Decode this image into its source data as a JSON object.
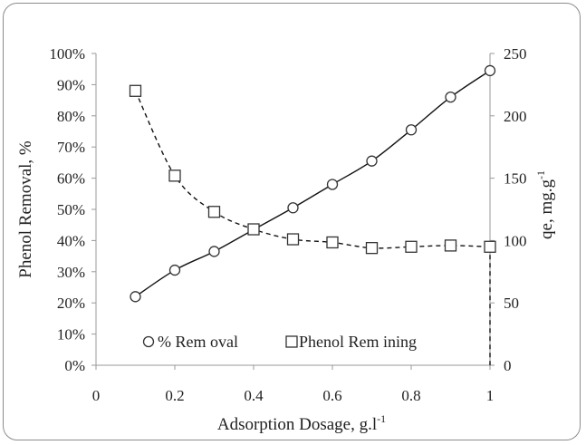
{
  "chart_data": {
    "type": "line",
    "xlabel": "Adsorption Dosage, g.l",
    "xlabel_sup": "-1",
    "ylabel_left": "Phenol Removal,  %",
    "ylabel_right": "qe,  mg.g",
    "ylabel_right_sup": "-1",
    "x_ticks": [
      "0",
      "0.2",
      "0.4",
      "0.6",
      "0.8",
      "1"
    ],
    "xlim": [
      0,
      1
    ],
    "y_left_ticks": [
      "0%",
      "10%",
      "20%",
      "30%",
      "40%",
      "50%",
      "60%",
      "70%",
      "80%",
      "90%",
      "100%"
    ],
    "ylim_left": [
      0,
      100
    ],
    "y_right_ticks": [
      "0",
      "50",
      "100",
      "150",
      "200",
      "250"
    ],
    "ylim_right": [
      0,
      250
    ],
    "grid": false,
    "legend_position": "bottom-left",
    "series": [
      {
        "name": "% Removal",
        "axis": "left",
        "marker": "circle",
        "line": "solid",
        "x": [
          0.1,
          0.2,
          0.3,
          0.4,
          0.5,
          0.6,
          0.7,
          0.8,
          0.9,
          1.0
        ],
        "values": [
          22,
          30.5,
          36.5,
          43.5,
          50.5,
          58,
          65.5,
          75.5,
          86,
          94.5
        ]
      },
      {
        "name": "Phenol Remining",
        "axis": "right",
        "marker": "square",
        "line": "dashed",
        "x": [
          0.1,
          0.2,
          0.3,
          0.4,
          0.5,
          0.6,
          0.7,
          0.8,
          0.9,
          1.0
        ],
        "values": [
          220,
          152,
          123,
          109,
          101,
          98.5,
          94,
          95,
          96,
          95
        ]
      }
    ]
  },
  "legend": {
    "removal_label": "% Rem oval",
    "remining_label": "Phenol Rem ining"
  }
}
